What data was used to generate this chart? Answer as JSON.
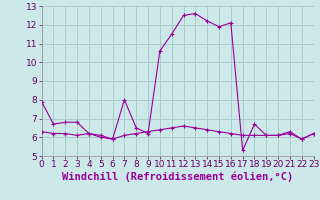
{
  "xlabel": "Windchill (Refroidissement éolien,°C)",
  "background_color": "#cce8e8",
  "line_color": "#990099",
  "grid_color": "#aacccc",
  "x_upper_line": [
    0,
    1,
    2,
    3,
    4,
    5,
    6,
    7,
    8,
    9,
    10,
    11,
    12,
    13,
    14,
    15,
    16,
    17,
    18,
    19,
    20,
    21,
    22,
    23
  ],
  "y_upper_line": [
    7.9,
    6.7,
    6.8,
    6.8,
    6.2,
    6.1,
    5.9,
    8.0,
    6.5,
    6.2,
    10.6,
    11.5,
    12.5,
    12.6,
    12.2,
    11.9,
    12.1,
    5.3,
    6.7,
    6.1,
    6.1,
    6.3,
    5.9,
    6.2
  ],
  "x_lower_line": [
    0,
    1,
    2,
    3,
    4,
    5,
    6,
    7,
    8,
    9,
    10,
    11,
    12,
    13,
    14,
    15,
    16,
    17,
    18,
    19,
    20,
    21,
    22,
    23
  ],
  "y_lower_line": [
    6.3,
    6.2,
    6.2,
    6.1,
    6.2,
    6.0,
    5.9,
    6.1,
    6.2,
    6.3,
    6.4,
    6.5,
    6.6,
    6.5,
    6.4,
    6.3,
    6.2,
    6.1,
    6.1,
    6.1,
    6.1,
    6.2,
    5.9,
    6.2
  ],
  "ylim": [
    5,
    13
  ],
  "xlim": [
    0,
    23
  ],
  "yticks": [
    5,
    6,
    7,
    8,
    9,
    10,
    11,
    12,
    13
  ],
  "xticks": [
    0,
    1,
    2,
    3,
    4,
    5,
    6,
    7,
    8,
    9,
    10,
    11,
    12,
    13,
    14,
    15,
    16,
    17,
    18,
    19,
    20,
    21,
    22,
    23
  ],
  "tick_fontsize": 6.5,
  "xlabel_fontsize": 7.5
}
